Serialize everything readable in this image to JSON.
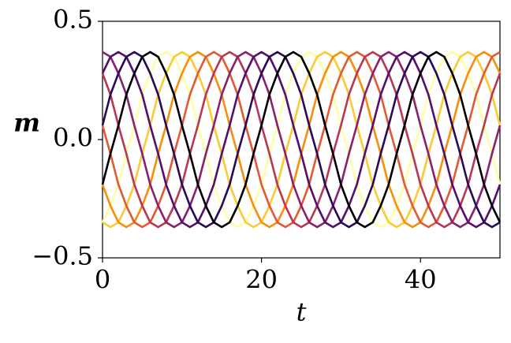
{
  "chart_data": {
    "type": "line",
    "x_label": "t",
    "y_label": "m",
    "xlim": [
      0,
      50
    ],
    "ylim": [
      -0.5,
      0.5
    ],
    "xticks": [
      0,
      20,
      40
    ],
    "yticks": [
      {
        "value": -0.5,
        "label": "−0.5"
      },
      {
        "value": 0,
        "label": "0.0"
      },
      0.5
    ],
    "x": [
      0,
      1,
      2,
      3,
      4,
      5,
      6,
      7,
      8,
      9,
      10,
      11,
      12,
      13,
      14,
      15,
      16,
      17,
      18,
      19,
      20,
      21,
      22,
      23,
      24,
      25,
      26,
      27,
      28,
      29,
      30,
      31,
      32,
      33,
      34,
      35,
      36,
      37,
      38,
      39,
      40,
      41,
      42,
      43,
      44,
      45,
      46,
      47,
      48,
      49,
      50
    ],
    "series": [
      {
        "color": "#fcffa4",
        "values": [
          -0.35,
          -0.28,
          -0.19,
          -0.06,
          0.06,
          0.19,
          0.28,
          0.35,
          0.37,
          0.35,
          0.28,
          0.19,
          0.06,
          -0.06,
          -0.19,
          -0.28,
          -0.35,
          -0.37,
          -0.35,
          -0.28,
          -0.19,
          -0.06,
          0.06,
          0.19,
          0.28,
          0.35,
          0.37,
          0.35,
          0.28,
          0.19,
          0.06,
          -0.06,
          -0.19,
          -0.28,
          -0.35,
          -0.37,
          -0.35,
          -0.28,
          -0.19,
          -0.06,
          0.06,
          0.19,
          0.28,
          0.35,
          0.37,
          0.35,
          0.28,
          0.19,
          0.06,
          -0.06,
          -0.19
        ]
      },
      {
        "color": "#f9cb35",
        "values": [
          -0.35,
          -0.37,
          -0.35,
          -0.28,
          -0.19,
          -0.06,
          0.06,
          0.19,
          0.28,
          0.35,
          0.37,
          0.35,
          0.28,
          0.19,
          0.06,
          -0.06,
          -0.19,
          -0.28,
          -0.35,
          -0.37,
          -0.35,
          -0.28,
          -0.19,
          -0.06,
          0.06,
          0.19,
          0.28,
          0.35,
          0.37,
          0.35,
          0.28,
          0.19,
          0.06,
          -0.06,
          -0.19,
          -0.28,
          -0.35,
          -0.37,
          -0.35,
          -0.28,
          -0.19,
          -0.06,
          0.06,
          0.19,
          0.28,
          0.35,
          0.37,
          0.35,
          0.28,
          0.19,
          0.06
        ]
      },
      {
        "color": "#f98e09",
        "values": [
          -0.19,
          -0.28,
          -0.35,
          -0.37,
          -0.35,
          -0.28,
          -0.19,
          -0.06,
          0.06,
          0.19,
          0.28,
          0.35,
          0.37,
          0.35,
          0.28,
          0.19,
          0.06,
          -0.06,
          -0.19,
          -0.28,
          -0.35,
          -0.37,
          -0.35,
          -0.28,
          -0.19,
          -0.06,
          0.06,
          0.19,
          0.28,
          0.35,
          0.37,
          0.35,
          0.28,
          0.19,
          0.06,
          -0.06,
          -0.19,
          -0.28,
          -0.35,
          -0.37,
          -0.35,
          -0.28,
          -0.19,
          -0.06,
          0.06,
          0.19,
          0.28,
          0.35,
          0.37,
          0.35,
          0.28
        ]
      },
      {
        "color": "#e35933",
        "values": [
          0.06,
          -0.06,
          -0.19,
          -0.28,
          -0.35,
          -0.37,
          -0.35,
          -0.28,
          -0.19,
          -0.06,
          0.06,
          0.19,
          0.28,
          0.35,
          0.37,
          0.35,
          0.28,
          0.19,
          0.06,
          -0.06,
          -0.19,
          -0.28,
          -0.35,
          -0.37,
          -0.35,
          -0.28,
          -0.19,
          -0.06,
          0.06,
          0.19,
          0.28,
          0.35,
          0.37,
          0.35,
          0.28,
          0.19,
          0.06,
          -0.06,
          -0.19,
          -0.28,
          -0.35,
          -0.37,
          -0.35,
          -0.28,
          -0.19,
          -0.06,
          0.06,
          0.19,
          0.28,
          0.35,
          0.37
        ]
      },
      {
        "color": "#ba3655",
        "values": [
          0.28,
          0.19,
          0.06,
          -0.06,
          -0.19,
          -0.28,
          -0.35,
          -0.37,
          -0.35,
          -0.28,
          -0.19,
          -0.06,
          0.06,
          0.19,
          0.28,
          0.35,
          0.37,
          0.35,
          0.28,
          0.19,
          0.06,
          -0.06,
          -0.19,
          -0.28,
          -0.35,
          -0.37,
          -0.35,
          -0.28,
          -0.19,
          -0.06,
          0.06,
          0.19,
          0.28,
          0.35,
          0.37,
          0.35,
          0.28,
          0.19,
          0.06,
          -0.06,
          -0.19,
          -0.28,
          -0.35,
          -0.37,
          -0.35,
          -0.28,
          -0.19,
          -0.06,
          0.06,
          0.19,
          0.28
        ]
      },
      {
        "color": "#88226a",
        "values": [
          0.37,
          0.35,
          0.28,
          0.19,
          0.06,
          -0.06,
          -0.19,
          -0.28,
          -0.35,
          -0.37,
          -0.35,
          -0.28,
          -0.19,
          -0.06,
          0.06,
          0.19,
          0.28,
          0.35,
          0.37,
          0.35,
          0.28,
          0.19,
          0.06,
          -0.06,
          -0.19,
          -0.28,
          -0.35,
          -0.37,
          -0.35,
          -0.28,
          -0.19,
          -0.06,
          0.06,
          0.19,
          0.28,
          0.35,
          0.37,
          0.35,
          0.28,
          0.19,
          0.06,
          -0.06,
          -0.19,
          -0.28,
          -0.35,
          -0.37,
          -0.35,
          -0.28,
          -0.19,
          -0.06,
          0.06
        ]
      },
      {
        "color": "#550f6d",
        "values": [
          0.28,
          0.35,
          0.37,
          0.35,
          0.28,
          0.19,
          0.06,
          -0.06,
          -0.19,
          -0.28,
          -0.35,
          -0.37,
          -0.35,
          -0.28,
          -0.19,
          -0.06,
          0.06,
          0.19,
          0.28,
          0.35,
          0.37,
          0.35,
          0.28,
          0.19,
          0.06,
          -0.06,
          -0.19,
          -0.28,
          -0.35,
          -0.37,
          -0.35,
          -0.28,
          -0.19,
          -0.06,
          0.06,
          0.19,
          0.28,
          0.35,
          0.37,
          0.35,
          0.28,
          0.19,
          0.06,
          -0.06,
          -0.19,
          -0.28,
          -0.35,
          -0.37,
          -0.35,
          -0.28,
          -0.19
        ]
      },
      {
        "color": "#2a0b57",
        "values": [
          0.06,
          0.19,
          0.28,
          0.35,
          0.37,
          0.35,
          0.28,
          0.19,
          0.06,
          -0.06,
          -0.19,
          -0.28,
          -0.35,
          -0.37,
          -0.35,
          -0.28,
          -0.19,
          -0.06,
          0.06,
          0.19,
          0.28,
          0.35,
          0.37,
          0.35,
          0.28,
          0.19,
          0.06,
          -0.06,
          -0.19,
          -0.28,
          -0.35,
          -0.37,
          -0.35,
          -0.28,
          -0.19,
          -0.06,
          0.06,
          0.19,
          0.28,
          0.35,
          0.37,
          0.35,
          0.28,
          0.19,
          0.06,
          -0.06,
          -0.19,
          -0.28,
          -0.35,
          -0.37,
          -0.35
        ]
      },
      {
        "color": "#000004",
        "values": [
          -0.19,
          -0.06,
          0.06,
          0.19,
          0.28,
          0.35,
          0.37,
          0.35,
          0.28,
          0.19,
          0.06,
          -0.06,
          -0.19,
          -0.28,
          -0.35,
          -0.37,
          -0.35,
          -0.28,
          -0.19,
          -0.06,
          0.06,
          0.19,
          0.28,
          0.35,
          0.37,
          0.35,
          0.28,
          0.19,
          0.06,
          -0.06,
          -0.19,
          -0.28,
          -0.35,
          -0.37,
          -0.35,
          -0.28,
          -0.19,
          -0.06,
          0.06,
          0.19,
          0.28,
          0.35,
          0.37,
          0.35,
          0.28,
          0.19,
          0.06,
          -0.06,
          -0.19,
          -0.28,
          -0.35
        ]
      }
    ]
  }
}
